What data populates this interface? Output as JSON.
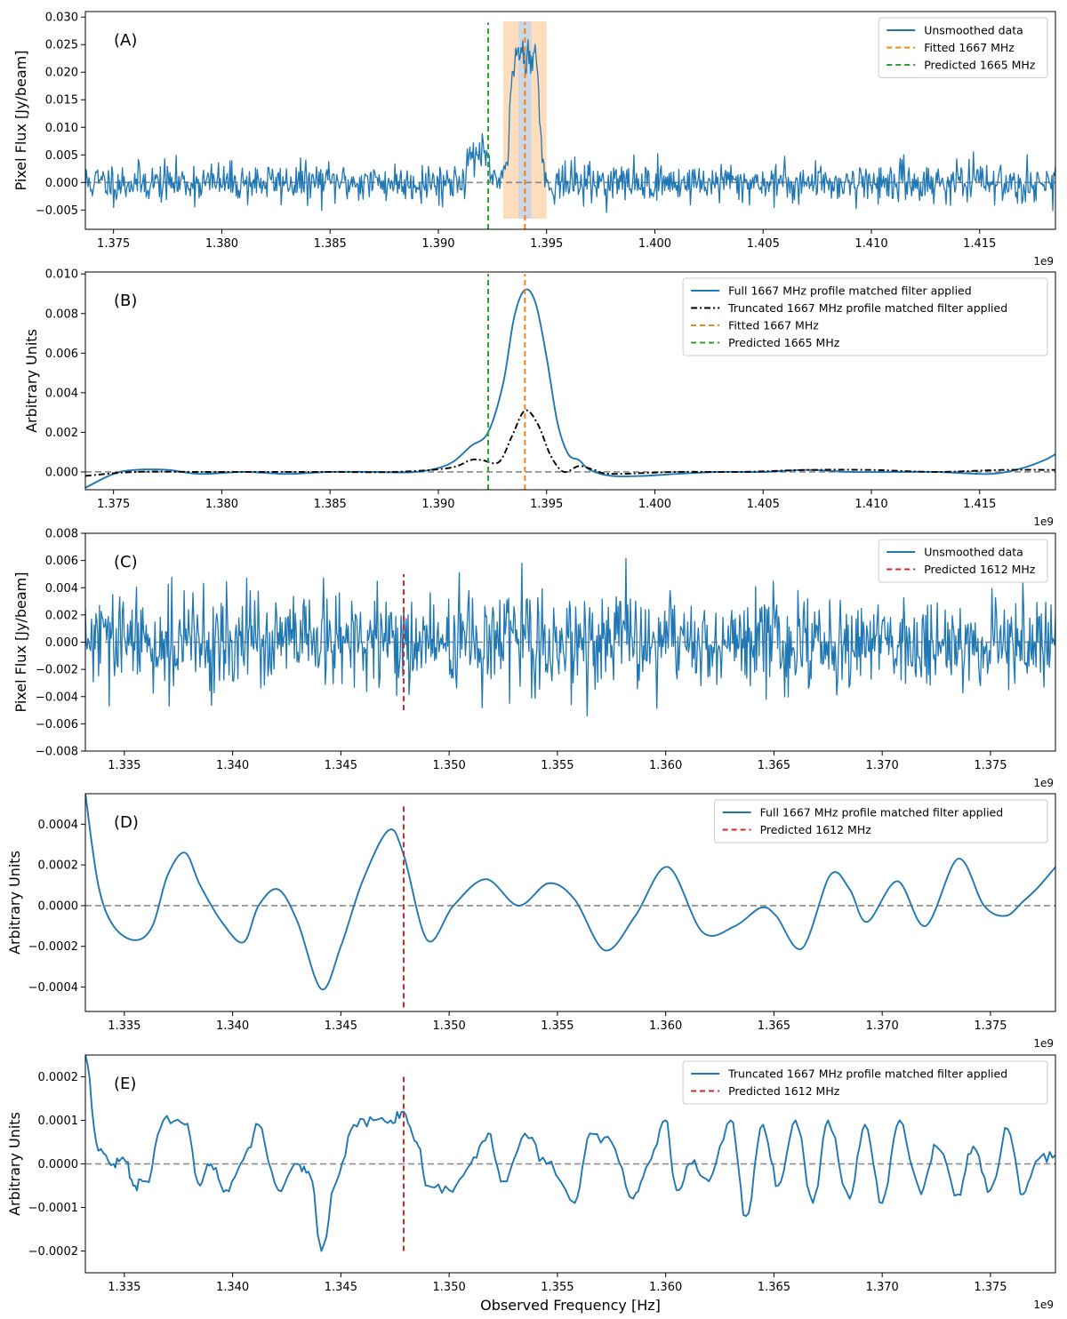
{
  "figure": {
    "x_axis_title": "Observed Frequency [Hz]",
    "x_offset_label": "1e9"
  },
  "colors": {
    "blue": "#1f77b4",
    "orange": "#ff7f0e",
    "green": "#2ca02c",
    "red": "#d62728",
    "black": "#000000",
    "gray": "#888888",
    "band_outer": "#fdd9b5",
    "band_inner": "#c8d6e8"
  },
  "chart_data": [
    {
      "id": "A",
      "type": "line",
      "panel_label": "(A)",
      "ylabel": "Pixel Flux [Jy/beam]",
      "xlim": [
        1.3737,
        1.4185
      ],
      "ylim": [
        -0.0085,
        0.031
      ],
      "x_unit_note": "x values in units of 1e9 Hz",
      "xticks": [
        1.375,
        1.38,
        1.385,
        1.39,
        1.395,
        1.4,
        1.405,
        1.41,
        1.415
      ],
      "xtick_labels": [
        "1.375",
        "1.380",
        "1.385",
        "1.390",
        "1.395",
        "1.400",
        "1.405",
        "1.410",
        "1.415"
      ],
      "yticks": [
        -0.005,
        0.0,
        0.005,
        0.01,
        0.015,
        0.02,
        0.025,
        0.03
      ],
      "ytick_labels": [
        "−0.005",
        "0.000",
        "0.005",
        "0.010",
        "0.015",
        "0.020",
        "0.025",
        "0.030"
      ],
      "zero_line": true,
      "shaded_bands": [
        {
          "x0": 1.393,
          "x1": 1.395,
          "color": "band_outer"
        },
        {
          "x0": 1.3937,
          "x1": 1.3943,
          "color": "band_inner"
        }
      ],
      "series": [
        {
          "name": "Unsmoothed data",
          "kind": "noise",
          "color": "blue",
          "noise_sigma": 0.0018,
          "seed": 11,
          "n_points": 1100,
          "features": [
            {
              "shape": "gauss",
              "center": 1.3918,
              "width": 0.0004,
              "amp": 0.0055
            },
            {
              "shape": "plateau",
              "x0": 1.3933,
              "x1": 1.3947,
              "rise": 0.00025,
              "amp": 0.0235
            }
          ]
        }
      ],
      "vlines": [
        {
          "name": "Fitted 1667 MHz",
          "x": 1.394,
          "y0": -0.0085,
          "y1": 0.029,
          "color": "orange",
          "dash": "dashed"
        },
        {
          "name": "Predicted 1665 MHz",
          "x": 1.3923,
          "y0": -0.0085,
          "y1": 0.029,
          "color": "green",
          "dash": "dashed"
        }
      ],
      "legend": {
        "position": "top-right",
        "entries": [
          {
            "label": "Unsmoothed data",
            "color": "blue",
            "style": "solid"
          },
          {
            "label": "Fitted 1667 MHz",
            "color": "orange",
            "style": "dashed"
          },
          {
            "label": "Predicted 1665 MHz",
            "color": "green",
            "style": "dashed"
          }
        ]
      },
      "offset_label": "1e9"
    },
    {
      "id": "B",
      "type": "line",
      "panel_label": "(B)",
      "ylabel": "Arbitrary Units",
      "xlim": [
        1.3737,
        1.4185
      ],
      "ylim": [
        -0.0009,
        0.0101
      ],
      "x_unit_note": "x values in units of 1e9 Hz",
      "xticks": [
        1.375,
        1.38,
        1.385,
        1.39,
        1.395,
        1.4,
        1.405,
        1.41,
        1.415
      ],
      "xtick_labels": [
        "1.375",
        "1.380",
        "1.385",
        "1.390",
        "1.395",
        "1.400",
        "1.405",
        "1.410",
        "1.415"
      ],
      "yticks": [
        0.0,
        0.002,
        0.004,
        0.006,
        0.008,
        0.01
      ],
      "ytick_labels": [
        "0.000",
        "0.002",
        "0.004",
        "0.006",
        "0.008",
        "0.010"
      ],
      "zero_line": true,
      "series": [
        {
          "name": "Full 1667 MHz profile matched filter applied",
          "kind": "points",
          "color": "blue",
          "style": "solid",
          "x": [
            1.3737,
            1.375,
            1.376,
            1.3775,
            1.379,
            1.381,
            1.383,
            1.385,
            1.387,
            1.389,
            1.3905,
            1.3915,
            1.3923,
            1.393,
            1.3935,
            1.394,
            1.3945,
            1.395,
            1.3955,
            1.396,
            1.3965,
            1.397,
            1.398,
            1.3995,
            1.401,
            1.403,
            1.405,
            1.407,
            1.409,
            1.411,
            1.413,
            1.4155,
            1.417,
            1.418,
            1.4185
          ],
          "y": [
            -0.0008,
            -0.0001,
            0.0001,
            0.0001,
            -0.0001,
            0.0,
            -0.0001,
            0.0,
            0.0,
            0.0,
            0.0004,
            0.0013,
            0.002,
            0.0045,
            0.0078,
            0.0092,
            0.0085,
            0.0058,
            0.0025,
            0.0009,
            0.0006,
            0.0001,
            -0.0002,
            -0.0002,
            -0.0001,
            0.0,
            0.0,
            0.0001,
            0.0,
            0.0,
            0.0,
            -0.0001,
            0.0002,
            0.0006,
            0.0009
          ]
        },
        {
          "name": "Truncated 1667 MHz profile matched filter applied",
          "kind": "points",
          "color": "black",
          "style": "dashdot",
          "x": [
            1.3737,
            1.376,
            1.379,
            1.382,
            1.385,
            1.388,
            1.3905,
            1.3915,
            1.392,
            1.3928,
            1.3934,
            1.394,
            1.3946,
            1.3952,
            1.3958,
            1.3965,
            1.3972,
            1.398,
            1.401,
            1.404,
            1.407,
            1.41,
            1.413,
            1.416,
            1.4185
          ],
          "y": [
            -0.0002,
            0.0,
            0.0,
            0.0,
            0.0,
            0.0,
            0.0002,
            0.0006,
            0.0006,
            0.0005,
            0.0018,
            0.0031,
            0.0024,
            0.0008,
            0.0,
            0.0003,
            0.0001,
            -0.0001,
            0.0,
            0.0,
            0.0001,
            0.0001,
            0.0,
            0.0001,
            0.0001
          ]
        }
      ],
      "vlines": [
        {
          "name": "Fitted 1667 MHz",
          "x": 1.394,
          "y0": -0.0009,
          "y1": 0.01,
          "color": "orange",
          "dash": "dashed"
        },
        {
          "name": "Predicted 1665 MHz",
          "x": 1.3923,
          "y0": -0.0009,
          "y1": 0.01,
          "color": "green",
          "dash": "dashed"
        }
      ],
      "legend": {
        "position": "top-right",
        "entries": [
          {
            "label": "Full 1667 MHz profile matched filter applied",
            "color": "blue",
            "style": "solid"
          },
          {
            "label": "Truncated 1667 MHz profile matched filter applied",
            "color": "black",
            "style": "dashdot"
          },
          {
            "label": "Fitted 1667 MHz",
            "color": "orange",
            "style": "dashed"
          },
          {
            "label": "Predicted 1665 MHz",
            "color": "green",
            "style": "dashed"
          }
        ]
      },
      "offset_label": "1e9"
    },
    {
      "id": "C",
      "type": "line",
      "panel_label": "(C)",
      "ylabel": "Pixel Flux [Jy/beam]",
      "xlim": [
        1.3332,
        1.378
      ],
      "ylim": [
        -0.008,
        0.008
      ],
      "x_unit_note": "x values in units of 1e9 Hz",
      "xticks": [
        1.335,
        1.34,
        1.345,
        1.35,
        1.355,
        1.36,
        1.365,
        1.37,
        1.375
      ],
      "xtick_labels": [
        "1.335",
        "1.340",
        "1.345",
        "1.350",
        "1.355",
        "1.360",
        "1.365",
        "1.370",
        "1.375"
      ],
      "yticks": [
        -0.008,
        -0.006,
        -0.004,
        -0.002,
        0.0,
        0.002,
        0.004,
        0.006,
        0.008
      ],
      "ytick_labels": [
        "−0.008",
        "−0.006",
        "−0.004",
        "−0.002",
        "0.000",
        "0.002",
        "0.004",
        "0.006",
        "0.008"
      ],
      "zero_line": true,
      "series": [
        {
          "name": "Unsmoothed data",
          "kind": "noise",
          "color": "blue",
          "noise_sigma": 0.0018,
          "seed": 29,
          "n_points": 1100,
          "features": []
        }
      ],
      "vlines": [
        {
          "name": "Predicted 1612 MHz",
          "x": 1.3479,
          "y0": -0.005,
          "y1": 0.005,
          "color": "red",
          "dash": "dashed"
        }
      ],
      "legend": {
        "position": "top-right",
        "entries": [
          {
            "label": "Unsmoothed data",
            "color": "blue",
            "style": "solid"
          },
          {
            "label": "Predicted 1612 MHz",
            "color": "red",
            "style": "dashed"
          }
        ]
      },
      "offset_label": "1e9"
    },
    {
      "id": "D",
      "type": "line",
      "panel_label": "(D)",
      "ylabel": "Arbitrary Units",
      "xlim": [
        1.3332,
        1.378
      ],
      "ylim": [
        -0.00052,
        0.00055
      ],
      "x_unit_note": "x values in units of 1e9 Hz",
      "xticks": [
        1.335,
        1.34,
        1.345,
        1.35,
        1.355,
        1.36,
        1.365,
        1.37,
        1.375
      ],
      "xtick_labels": [
        "1.335",
        "1.340",
        "1.345",
        "1.350",
        "1.355",
        "1.360",
        "1.365",
        "1.370",
        "1.375"
      ],
      "yticks": [
        -0.0004,
        -0.0002,
        0.0,
        0.0002,
        0.0004
      ],
      "ytick_labels": [
        "−0.0004",
        "−0.0002",
        "0.0000",
        "0.0002",
        "0.0004"
      ],
      "zero_line": true,
      "series": [
        {
          "name": "Full 1667 MHz profile matched filter applied",
          "kind": "points",
          "color": "blue",
          "style": "solid",
          "x": [
            1.3332,
            1.3338,
            1.3345,
            1.3355,
            1.3363,
            1.337,
            1.3378,
            1.3385,
            1.3395,
            1.3405,
            1.3412,
            1.3421,
            1.343,
            1.3441,
            1.345,
            1.346,
            1.3472,
            1.3479,
            1.349,
            1.3502,
            1.3517,
            1.3532,
            1.3546,
            1.3558,
            1.3572,
            1.3586,
            1.3601,
            1.3617,
            1.3632,
            1.3644,
            1.3651,
            1.3663,
            1.3676,
            1.3685,
            1.3693,
            1.3707,
            1.372,
            1.3735,
            1.3747,
            1.3757,
            1.3765,
            1.3772,
            1.378
          ],
          "y": [
            0.00055,
            0.0001,
            -0.0001,
            -0.00017,
            -0.0001,
            0.00015,
            0.00026,
            0.0001,
            -8e-05,
            -0.00018,
            0.0,
            8e-05,
            -8e-05,
            -0.00041,
            -0.0002,
            0.00012,
            0.00037,
            0.00025,
            -0.00017,
            0.0,
            0.00013,
            0.0,
            0.00011,
            3e-05,
            -0.00022,
            -5e-05,
            0.00019,
            -0.00013,
            -0.0001,
            -1e-05,
            -5e-05,
            -0.00021,
            0.00015,
            8e-05,
            -8e-05,
            0.00012,
            -0.0001,
            0.00023,
            0.0,
            -5e-05,
            2e-05,
            9e-05,
            0.00019
          ]
        }
      ],
      "vlines": [
        {
          "name": "Predicted 1612 MHz",
          "x": 1.3479,
          "y0": -0.0005,
          "y1": 0.0005,
          "color": "red",
          "dash": "dashed"
        }
      ],
      "legend": {
        "position": "top-right",
        "entries": [
          {
            "label": "Full 1667 MHz profile matched filter applied",
            "color": "blue",
            "style": "solid"
          },
          {
            "label": "Predicted 1612 MHz",
            "color": "red",
            "style": "dashed"
          }
        ]
      },
      "offset_label": "1e9"
    },
    {
      "id": "E",
      "type": "line",
      "panel_label": "(E)",
      "ylabel": "Arbitrary Units",
      "xlim": [
        1.3332,
        1.378
      ],
      "ylim": [
        -0.00025,
        0.00025
      ],
      "x_unit_note": "x values in units of 1e9 Hz",
      "xticks": [
        1.335,
        1.34,
        1.345,
        1.35,
        1.355,
        1.36,
        1.365,
        1.37,
        1.375
      ],
      "xtick_labels": [
        "1.335",
        "1.340",
        "1.345",
        "1.350",
        "1.355",
        "1.360",
        "1.365",
        "1.370",
        "1.375"
      ],
      "yticks": [
        -0.0002,
        -0.0001,
        0.0,
        0.0001,
        0.0002
      ],
      "ytick_labels": [
        "−0.0002",
        "−0.0001",
        "0.0000",
        "0.0001",
        "0.0002"
      ],
      "zero_line": true,
      "series": [
        {
          "name": "Truncated 1667 MHz profile matched filter applied",
          "kind": "points",
          "color": "blue",
          "style": "solid",
          "wiggle": 1.2e-05,
          "seed": 47,
          "x": [
            1.3332,
            1.3338,
            1.3345,
            1.335,
            1.3355,
            1.336,
            1.3368,
            1.3378,
            1.3385,
            1.339,
            1.3397,
            1.3405,
            1.3412,
            1.3421,
            1.343,
            1.3436,
            1.3441,
            1.3448,
            1.3456,
            1.3465,
            1.3473,
            1.3479,
            1.3485,
            1.349,
            1.35,
            1.351,
            1.3518,
            1.3525,
            1.3535,
            1.3545,
            1.3558,
            1.3565,
            1.3575,
            1.3585,
            1.3592,
            1.36,
            1.3605,
            1.3612,
            1.362,
            1.363,
            1.3637,
            1.3645,
            1.3652,
            1.366,
            1.3668,
            1.3675,
            1.3685,
            1.3692,
            1.37,
            1.3708,
            1.3718,
            1.3725,
            1.3735,
            1.3742,
            1.375,
            1.3758,
            1.3765,
            1.3772,
            1.378
          ],
          "y": [
            0.00025,
            3e-05,
            0.0,
            1e-05,
            -5e-05,
            -4e-05,
            0.0001,
            9e-05,
            -5e-05,
            0.0,
            -6e-05,
            1e-05,
            9e-05,
            -6e-05,
            0.0,
            -3e-05,
            -0.0002,
            -4e-05,
            9e-05,
            0.0001,
            0.0001,
            0.00012,
            5e-05,
            -5e-05,
            -6e-05,
            0.0,
            7e-05,
            -4e-05,
            7e-05,
            0.0,
            -9e-05,
            7e-05,
            5e-05,
            -8e-05,
            0.0,
            0.0001,
            -6e-05,
            0.0,
            -4e-05,
            0.0001,
            -0.00012,
            9e-05,
            -5e-05,
            0.0001,
            -9e-05,
            0.0001,
            -8e-05,
            9e-05,
            -9e-05,
            0.0001,
            -7e-05,
            4e-05,
            -7e-05,
            4e-05,
            -6e-05,
            8e-05,
            -7e-05,
            1e-05,
            2e-05
          ]
        }
      ],
      "vlines": [
        {
          "name": "Predicted 1612 MHz",
          "x": 1.3479,
          "y0": -0.0002,
          "y1": 0.0002,
          "color": "red",
          "dash": "dashed"
        }
      ],
      "legend": {
        "position": "top-right",
        "entries": [
          {
            "label": "Truncated 1667 MHz profile matched filter applied",
            "color": "blue",
            "style": "solid"
          },
          {
            "label": "Predicted 1612 MHz",
            "color": "red",
            "style": "dashed"
          }
        ]
      },
      "offset_label": "1e9"
    }
  ]
}
